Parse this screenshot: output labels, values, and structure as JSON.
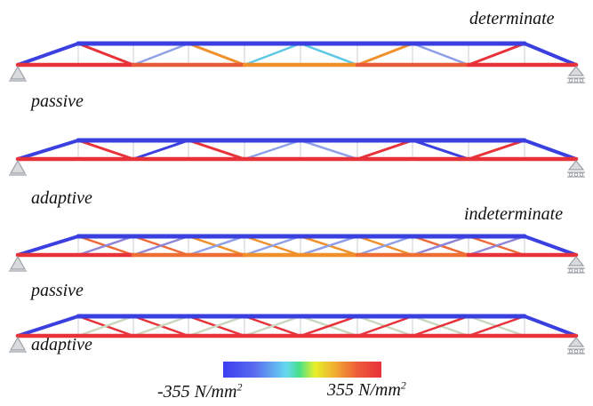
{
  "labels": {
    "determinate": "determinate",
    "indeterminate": "indeterminate",
    "passive_1": "passive",
    "adaptive_1": "adaptive",
    "passive_2": "passive",
    "adaptive_2": "adaptive"
  },
  "colorbar": {
    "min_label": "-355 N/mm",
    "max_label": "355 N/mm",
    "exponent": "2",
    "colors": [
      "#3a3df0",
      "#5a6cf0",
      "#66d8f0",
      "#46e08a",
      "#e8f02a",
      "#f0b030",
      "#ee5a3a",
      "#e8323a"
    ]
  },
  "colors": {
    "tension": "#e8323a",
    "compression": "#3a3fe0",
    "orange": "#f0902a",
    "cyan": "#5cc8e6",
    "light_blue": "#8fa0e8",
    "support": "#9aa0a6"
  }
}
